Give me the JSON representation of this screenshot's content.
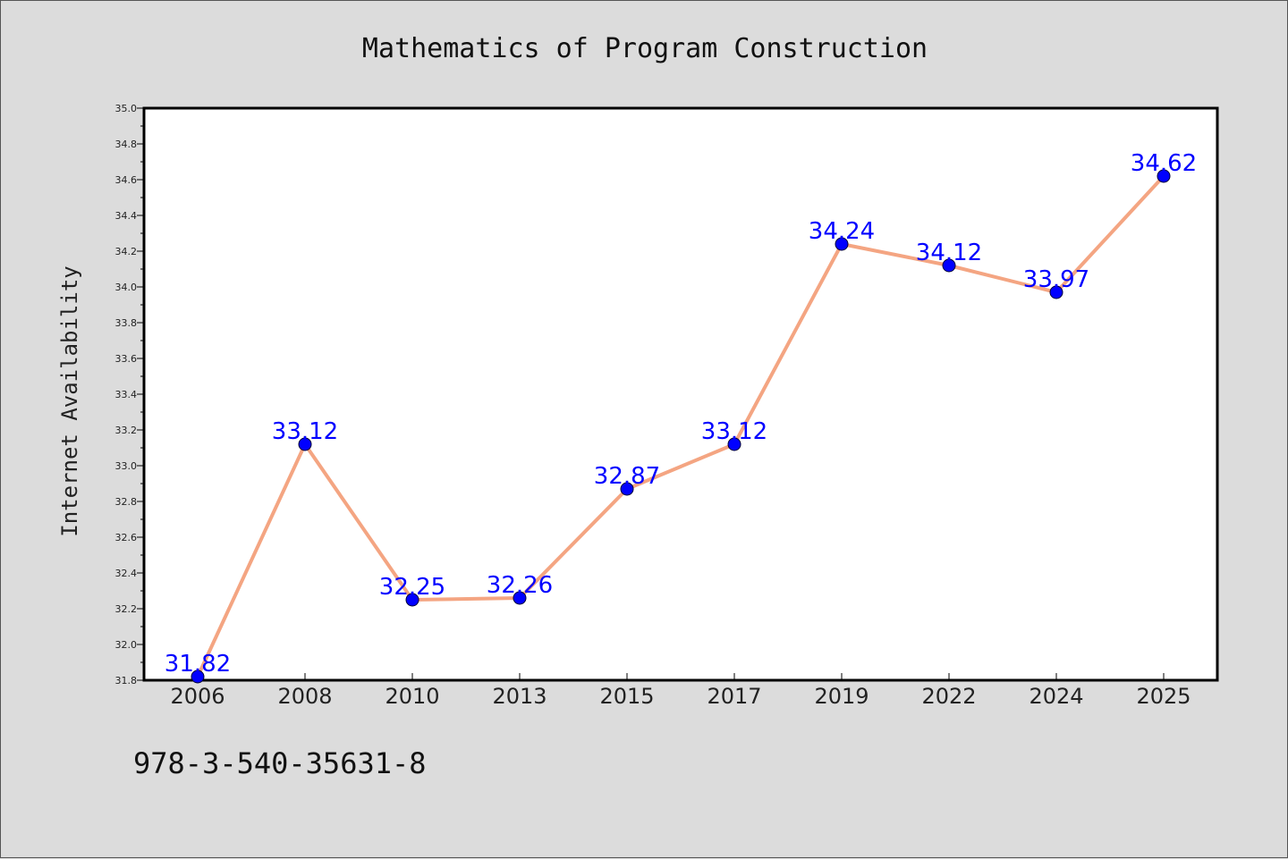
{
  "chart_data": {
    "type": "line",
    "title": "Mathematics of Program Construction",
    "xlabel": "",
    "ylabel": "Internet Availability",
    "categories": [
      "2006",
      "2008",
      "2010",
      "2013",
      "2015",
      "2017",
      "2019",
      "2022",
      "2024",
      "2025"
    ],
    "series": [
      {
        "values": [
          31.82,
          33.12,
          32.25,
          32.26,
          32.87,
          33.12,
          34.24,
          34.12,
          33.97,
          34.62
        ],
        "labels": [
          "31.82",
          "33.12",
          "32.25",
          "32.26",
          "32.87",
          "33.12",
          "34.24",
          "34.12",
          "33.97",
          "34.62"
        ],
        "line_color": "#f4a582",
        "marker_color": "#0000ff"
      }
    ],
    "ylim": [
      31.8,
      35.0
    ],
    "yticks": [
      "31.8",
      "32.0",
      "32.2",
      "32.4",
      "32.6",
      "32.8",
      "33.0",
      "33.2",
      "33.4",
      "33.6",
      "33.8",
      "34.0",
      "34.2",
      "34.4",
      "34.6",
      "34.8",
      "35.0"
    ],
    "grid": false,
    "legend": "none",
    "annotation": "978-3-540-35631-8"
  },
  "colors": {
    "background": "#dcdcdc",
    "plot_background": "#ffffff",
    "line": "#f4a582",
    "marker": "#0000ff",
    "label": "#0000ff"
  }
}
